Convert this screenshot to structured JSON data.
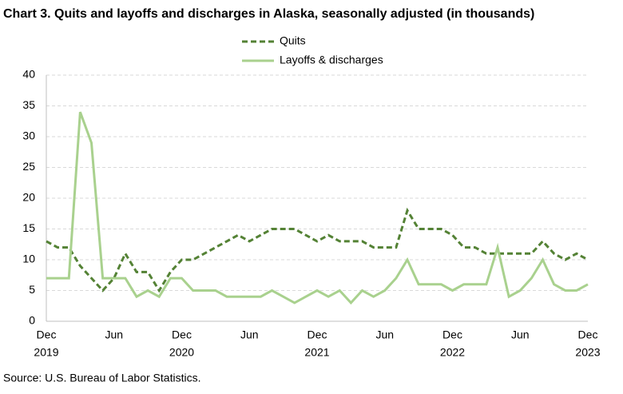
{
  "chart_data": {
    "type": "line",
    "title": "Chart 3. Quits and layoffs and discharges in Alaska, seasonally adjusted (in thousands)",
    "source": "Source: U.S. Bureau of Labor Statistics.",
    "categories": [
      "Dec",
      null,
      null,
      null,
      null,
      null,
      "Jun",
      null,
      null,
      null,
      null,
      null,
      "Dec",
      null,
      null,
      null,
      null,
      null,
      "Jun",
      null,
      null,
      null,
      null,
      null,
      "Dec",
      null,
      null,
      null,
      null,
      null,
      "Jun",
      null,
      null,
      null,
      null,
      null,
      "Dec",
      null,
      null,
      null,
      null,
      null,
      "Jun",
      null,
      null,
      null,
      null,
      null,
      "Dec"
    ],
    "years": [
      "2019",
      null,
      null,
      null,
      null,
      null,
      null,
      null,
      null,
      null,
      null,
      null,
      "2020",
      null,
      null,
      null,
      null,
      null,
      null,
      null,
      null,
      null,
      null,
      null,
      "2021",
      null,
      null,
      null,
      null,
      null,
      null,
      null,
      null,
      null,
      null,
      null,
      "2022",
      null,
      null,
      null,
      null,
      null,
      null,
      null,
      null,
      null,
      null,
      null,
      "2023"
    ],
    "series": [
      {
        "name": "Quits",
        "color": "#548235",
        "line_style": "dashed",
        "values": [
          13,
          12,
          12,
          9,
          7,
          5,
          7,
          11,
          8,
          8,
          5,
          8,
          10,
          10,
          11,
          12,
          13,
          14,
          13,
          14,
          15,
          15,
          15,
          14,
          13,
          14,
          13,
          13,
          13,
          12,
          12,
          12,
          18,
          15,
          15,
          15,
          14,
          12,
          12,
          11,
          11,
          11,
          11,
          11,
          13,
          11,
          10,
          11,
          10
        ]
      },
      {
        "name": "Layoffs & discharges",
        "color": "#a9d18e",
        "line_style": "solid",
        "values": [
          7,
          7,
          7,
          34,
          29,
          7,
          7,
          7,
          4,
          5,
          4,
          7,
          7,
          5,
          5,
          5,
          4,
          4,
          4,
          4,
          5,
          4,
          3,
          4,
          5,
          4,
          5,
          3,
          5,
          4,
          5,
          7,
          10,
          6,
          6,
          6,
          5,
          6,
          6,
          6,
          12,
          4,
          5,
          7,
          10,
          6,
          5,
          5,
          6
        ]
      }
    ],
    "ylim": [
      0,
      40
    ],
    "yticks": [
      0,
      5,
      10,
      15,
      20,
      25,
      30,
      35,
      40
    ],
    "grid": true,
    "legend": "top"
  }
}
